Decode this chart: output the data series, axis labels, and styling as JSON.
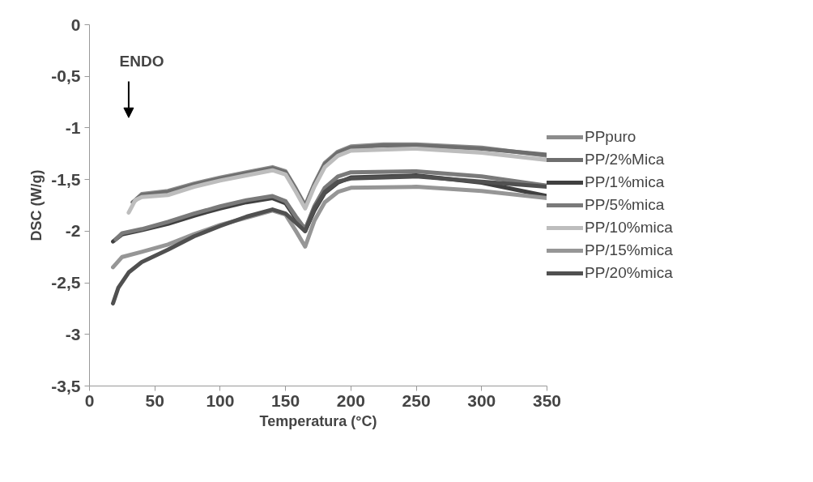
{
  "chart_data": {
    "type": "line",
    "xlabel": "Temperatura (°C)",
    "ylabel": "DSC (W/g)",
    "annotations": [
      "ENDO"
    ],
    "xlim": [
      0,
      350
    ],
    "ylim": [
      -3.5,
      0
    ],
    "xticks": [
      0,
      50,
      100,
      150,
      200,
      250,
      300,
      350
    ],
    "yticks": [
      0,
      {
        "value": -0.5,
        "label": "-0,5"
      },
      -1,
      {
        "value": -1.5,
        "label": "-1,5"
      },
      -2,
      {
        "value": -2.5,
        "label": "-2,5"
      },
      -3,
      {
        "value": -3.5,
        "label": "-3,5"
      }
    ],
    "grid": false,
    "legend": "right",
    "marker": "none",
    "line_style": "solid",
    "series": [
      {
        "name": "PPpuro",
        "color": "#8c8c8c",
        "x": [
          35,
          40,
          60,
          80,
          100,
          120,
          140,
          150,
          158,
          165,
          172,
          180,
          190,
          200,
          225,
          250,
          300,
          350
        ],
        "values": [
          -1.7,
          -1.64,
          -1.61,
          -1.54,
          -1.48,
          -1.43,
          -1.38,
          -1.42,
          -1.59,
          -1.75,
          -1.54,
          -1.34,
          -1.23,
          -1.18,
          -1.16,
          -1.16,
          -1.19,
          -1.27
        ]
      },
      {
        "name": "PP/2%Mica",
        "color": "#6e6e6e",
        "x": [
          33,
          40,
          60,
          80,
          100,
          120,
          140,
          150,
          158,
          165,
          172,
          180,
          190,
          200,
          225,
          250,
          300,
          350
        ],
        "values": [
          -1.72,
          -1.65,
          -1.62,
          -1.55,
          -1.49,
          -1.44,
          -1.39,
          -1.43,
          -1.6,
          -1.76,
          -1.55,
          -1.35,
          -1.24,
          -1.19,
          -1.17,
          -1.17,
          -1.2,
          -1.26
        ]
      },
      {
        "name": "PP/1%mica",
        "color": "#404040",
        "x": [
          18,
          25,
          40,
          60,
          80,
          100,
          120,
          140,
          150,
          158,
          165,
          172,
          180,
          190,
          200,
          250,
          300,
          350
        ],
        "values": [
          -2.1,
          -2.03,
          -1.99,
          -1.93,
          -1.85,
          -1.78,
          -1.72,
          -1.68,
          -1.73,
          -1.88,
          -2.0,
          -1.8,
          -1.63,
          -1.53,
          -1.48,
          -1.46,
          -1.53,
          -1.66
        ]
      },
      {
        "name": "PP/5%mica",
        "color": "#7a7a7a",
        "x": [
          20,
          25,
          40,
          60,
          80,
          100,
          120,
          140,
          150,
          158,
          165,
          172,
          180,
          190,
          200,
          250,
          300,
          350
        ],
        "values": [
          -2.08,
          -2.02,
          -1.98,
          -1.91,
          -1.83,
          -1.76,
          -1.7,
          -1.66,
          -1.71,
          -1.86,
          -1.98,
          -1.76,
          -1.58,
          -1.47,
          -1.43,
          -1.42,
          -1.47,
          -1.56
        ]
      },
      {
        "name": "PP/10%mica",
        "color": "#bdbdbd",
        "x": [
          30,
          35,
          40,
          60,
          80,
          100,
          120,
          140,
          150,
          158,
          165,
          172,
          180,
          190,
          200,
          250,
          300,
          350
        ],
        "values": [
          -1.82,
          -1.7,
          -1.67,
          -1.65,
          -1.57,
          -1.51,
          -1.46,
          -1.41,
          -1.45,
          -1.62,
          -1.78,
          -1.57,
          -1.38,
          -1.27,
          -1.22,
          -1.2,
          -1.24,
          -1.31
        ]
      },
      {
        "name": "PP/15%mica",
        "color": "#969696",
        "x": [
          18,
          25,
          40,
          60,
          80,
          100,
          120,
          140,
          150,
          158,
          165,
          172,
          180,
          190,
          200,
          250,
          300,
          350
        ],
        "values": [
          -2.35,
          -2.25,
          -2.2,
          -2.13,
          -2.03,
          -1.94,
          -1.87,
          -1.8,
          -1.84,
          -2.0,
          -2.15,
          -1.9,
          -1.72,
          -1.62,
          -1.58,
          -1.57,
          -1.61,
          -1.68
        ]
      },
      {
        "name": "PP/20%mica",
        "color": "#505050",
        "x": [
          18,
          22,
          30,
          40,
          60,
          80,
          100,
          120,
          140,
          150,
          158,
          165,
          172,
          180,
          190,
          200,
          250,
          300,
          350
        ],
        "values": [
          -2.7,
          -2.55,
          -2.4,
          -2.3,
          -2.18,
          -2.05,
          -1.95,
          -1.86,
          -1.79,
          -1.83,
          -1.92,
          -2.0,
          -1.78,
          -1.62,
          -1.52,
          -1.49,
          -1.47,
          -1.52,
          -1.57
        ]
      }
    ]
  }
}
